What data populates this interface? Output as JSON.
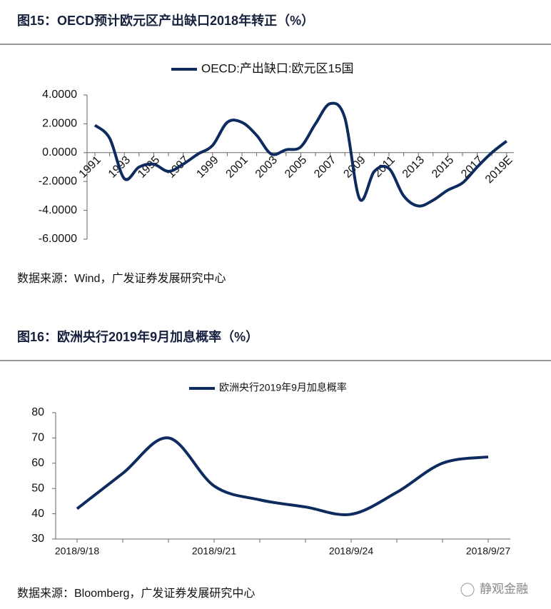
{
  "chart_data": [
    {
      "type": "line",
      "title": "图15：OECD预计欧元区产出缺口2018年转正（%）",
      "source": "数据来源：Wind，广发证券发展研究中心",
      "categories": [
        "1991",
        null,
        "1993",
        null,
        "1995",
        null,
        "1997",
        null,
        "1999",
        null,
        "2001",
        null,
        "2003",
        null,
        "2005",
        null,
        "2007",
        null,
        "2009",
        null,
        "2011",
        null,
        "2013",
        null,
        "2015",
        null,
        "2017",
        null,
        "2019E"
      ],
      "series": [
        {
          "name": "OECD:产出缺口:欧元区15国",
          "color": "#0d2b5e",
          "values": [
            1.9,
            1.0,
            -1.8,
            -1.0,
            -0.8,
            -1.3,
            -0.8,
            -0.1,
            0.5,
            2.1,
            2.1,
            1.2,
            -0.1,
            0.2,
            0.4,
            2.0,
            3.4,
            2.4,
            -3.2,
            -1.3,
            -1.1,
            -3.0,
            -3.7,
            -3.3,
            -2.6,
            -2.1,
            -1.0,
            0.0,
            0.8
          ]
        }
      ],
      "ylim": [
        -6,
        4
      ],
      "yticks": [
        {
          "value": 4,
          "label": "4.0000"
        },
        {
          "value": 2,
          "label": "2.0000"
        },
        {
          "value": 0,
          "label": "0.0000"
        },
        {
          "value": -2,
          "label": "-2.0000"
        },
        {
          "value": -4,
          "label": "-4.0000"
        },
        {
          "value": -6,
          "label": "-6.0000"
        }
      ]
    },
    {
      "type": "line",
      "title": "图16：欧洲央行2019年9月加息概率（%）",
      "source": "数据来源：Bloomberg，广发证券发展研究中心",
      "categories": [
        "2018/9/18",
        null,
        null,
        "2018/9/21",
        null,
        null,
        "2018/9/24",
        null,
        null,
        "2018/9/27"
      ],
      "series": [
        {
          "name": "欧洲央行2019年9月加息概率",
          "color": "#0d2b5e",
          "values": [
            42,
            56,
            70,
            51,
            45.5,
            42.7,
            39.8,
            48.5,
            60,
            62.5
          ]
        }
      ],
      "ylim": [
        30,
        80
      ],
      "yticks": [
        30,
        40,
        50,
        60,
        70,
        80
      ]
    }
  ],
  "watermark": "静观金融"
}
